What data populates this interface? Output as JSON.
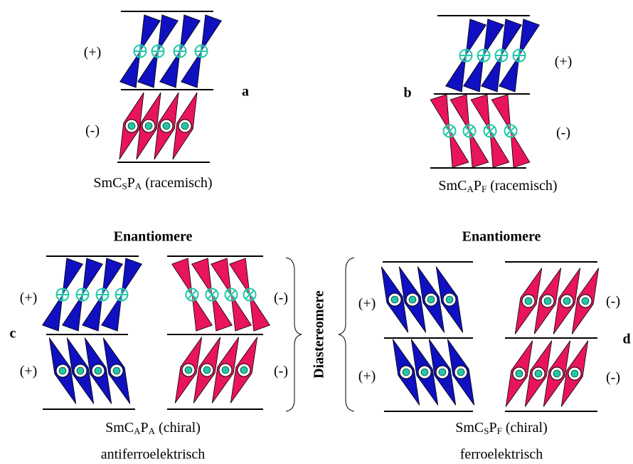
{
  "panel_a": {
    "letter": "a",
    "layer_labels": [
      "(+)",
      "(-)"
    ],
    "caption": {
      "base": "SmC",
      "sub1": "S",
      "mid": "P",
      "sub2": "A",
      "rest": " (racemisch)"
    }
  },
  "panel_b": {
    "letter": "b",
    "layer_labels": [
      "(+)",
      "(-)"
    ],
    "caption": {
      "base": "SmC",
      "sub1": "A",
      "mid": "P",
      "sub2": "F",
      "rest": " (racemisch)"
    }
  },
  "panel_c": {
    "heading": "Enantiomere",
    "letter": "c",
    "layer_labels": [
      "(+)",
      "(+)",
      "(-)",
      "(-)"
    ],
    "caption": {
      "base": "SmC",
      "sub1": "A",
      "mid": "P",
      "sub2": "A",
      "rest": " (chiral)"
    },
    "subtitle": "antiferroelektrisch"
  },
  "panel_d": {
    "heading": "Enantiomere",
    "letter": "d",
    "layer_labels": [
      "(+)",
      "(+)",
      "(-)",
      "(-)"
    ],
    "caption": {
      "base": "SmC",
      "sub1": "S",
      "mid": "P",
      "sub2": "F",
      "rest": " (chiral)"
    },
    "subtitle": "ferroelektrisch"
  },
  "center_label": "Diastereomere"
}
